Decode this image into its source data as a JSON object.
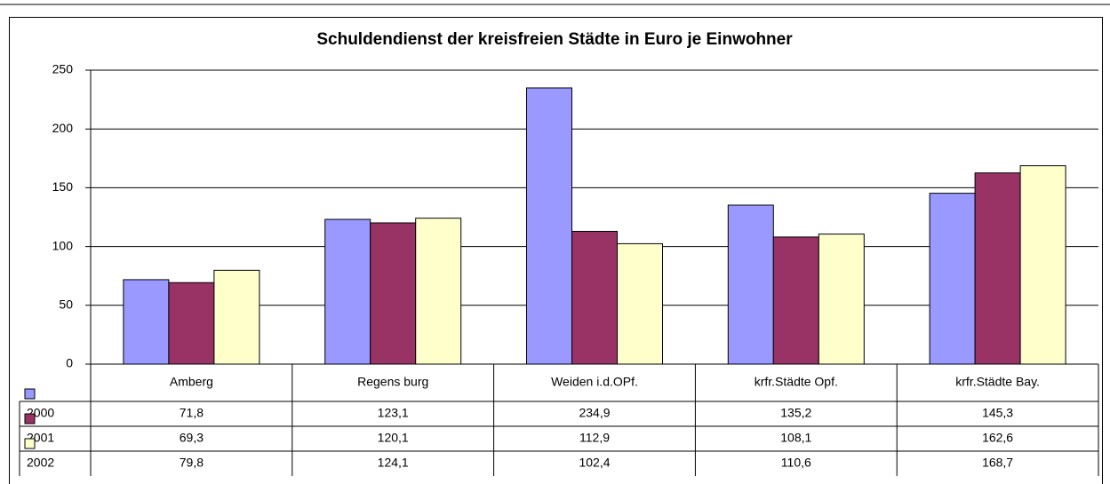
{
  "chart_data": {
    "type": "bar",
    "title": "Schuldendienst der kreisfreien Städte in Euro je Einwohner",
    "categories": [
      "Amberg",
      "Regens burg",
      "Weiden i.d.OPf.",
      "krfr.Städte Opf.",
      "krfr.Städte Bay."
    ],
    "series": [
      {
        "name": "2000",
        "color": "#9999ff",
        "values": [
          71.8,
          123.1,
          234.9,
          135.2,
          145.3
        ],
        "value_labels": [
          "71,8",
          "123,1",
          "234,9",
          "135,2",
          "145,3"
        ]
      },
      {
        "name": "2001",
        "color": "#993366",
        "values": [
          69.3,
          120.1,
          112.9,
          108.1,
          162.6
        ],
        "value_labels": [
          "69,3",
          "120,1",
          "112,9",
          "108,1",
          "162,6"
        ]
      },
      {
        "name": "2002",
        "color": "#ffffcc",
        "values": [
          79.8,
          124.1,
          102.4,
          110.6,
          168.7
        ],
        "value_labels": [
          "79,8",
          "124,1",
          "102,4",
          "110,6",
          "168,7"
        ]
      }
    ],
    "ylim": [
      0,
      250
    ],
    "yticks": [
      0,
      50,
      100,
      150,
      200,
      250
    ],
    "grid": true
  }
}
